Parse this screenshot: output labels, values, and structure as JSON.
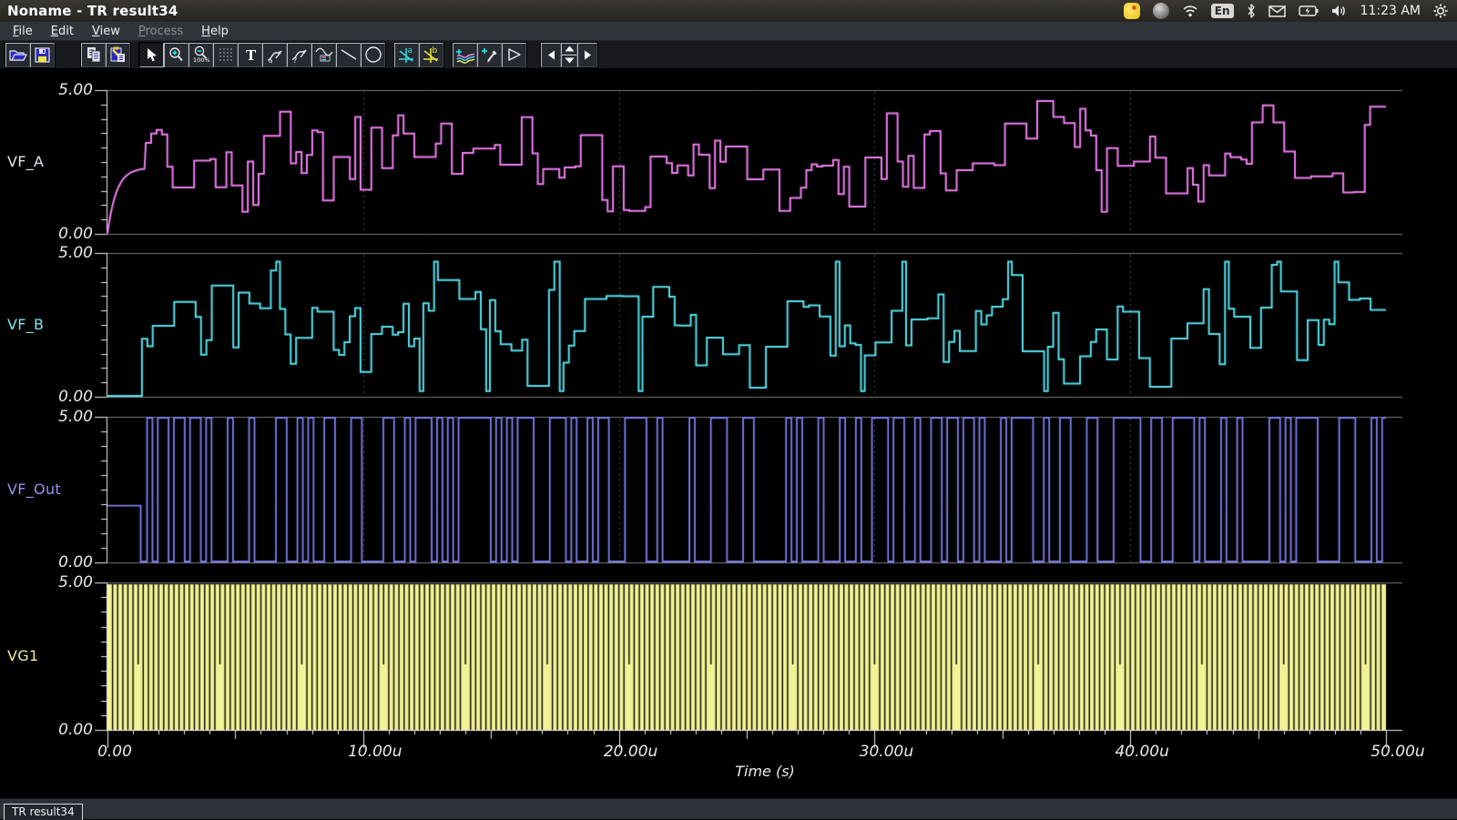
{
  "window": {
    "title": "Noname - TR result34"
  },
  "tray": {
    "icons": [
      "app-yellow-icon",
      "gray-sphere-icon",
      "wifi-icon",
      "keyboard-layout-indicator",
      "bluetooth-icon",
      "mail-icon",
      "battery-icon",
      "speaker-icon",
      "clock",
      "power-gear-icon"
    ],
    "keyboard_layout": "En",
    "clock": "11:23 AM"
  },
  "menu": {
    "items": [
      {
        "label": "File",
        "enabled": true
      },
      {
        "label": "Edit",
        "enabled": true
      },
      {
        "label": "View",
        "enabled": true
      },
      {
        "label": "Process",
        "enabled": false
      },
      {
        "label": "Help",
        "enabled": true
      }
    ]
  },
  "toolbar": {
    "buttons": [
      "open",
      "save",
      "copy",
      "paste",
      "select-cursor",
      "zoom-in",
      "zoom-out-100",
      "grid",
      "text-tool",
      "edit-curve-a",
      "edit-curve-b",
      "curve-legend",
      "line-tool",
      "ellipse-tool",
      "cursor-a",
      "cursor-b",
      "show-curves",
      "probe",
      "run",
      "scroll-left",
      "scroll-spinner",
      "scroll-right"
    ],
    "selected": "select-cursor"
  },
  "chart_data": {
    "type": "line",
    "xlabel": "Time (s)",
    "x_range_us": [
      0,
      50
    ],
    "x_ticks": [
      "0.00",
      "10.00u",
      "20.00u",
      "30.00u",
      "40.00u",
      "50.00u"
    ],
    "x_minor_tick_us": 1,
    "grid": {
      "panel_borders": "solid-gray",
      "vertical_major": "dashed-gray"
    },
    "panels": [
      {
        "name": "VF_A",
        "color": "#f07ef2",
        "label_color": "#e4e4ec",
        "ylim": [
          0,
          5
        ],
        "y_ticks": [
          "5.00",
          "0.00"
        ],
        "signal": {
          "kind": "random-steps",
          "seed": 20113,
          "initial": "exp-rise",
          "tau_us": 0.35,
          "settle_v": 2.3,
          "flat_until_us": 1.5,
          "step_us": 0.21,
          "mean_v": 2.6,
          "min_v": 0.72,
          "max_v": 4.62
        }
      },
      {
        "name": "VF_B",
        "color": "#55e2ee",
        "label_color": "#7ce7ef",
        "ylim": [
          0,
          5
        ],
        "y_ticks": [
          "5.00",
          "0.00"
        ],
        "signal": {
          "kind": "random-steps",
          "seed": 77641,
          "initial": "zero",
          "flat_until_us": 1.35,
          "step_us": 0.21,
          "mean_v": 2.55,
          "min_v": 0.2,
          "max_v": 4.7,
          "spike_prob": 0.055
        }
      },
      {
        "name": "VF_Out",
        "color": "#7f7ff0",
        "label_color": "#9595f2",
        "ylim": [
          0,
          5
        ],
        "y_ticks": [
          "5.00",
          "0.00"
        ],
        "signal": {
          "kind": "random-nrz",
          "seed": 99173,
          "initial_v": 1.95,
          "initial_until_us": 1.3,
          "bits_start_us": 1.55,
          "bit_us": 0.21,
          "high_v": 5,
          "low_v": 0
        }
      },
      {
        "name": "VG1",
        "color": "#f2f296",
        "label_color": "#eeee8e",
        "ylim": [
          0,
          5
        ],
        "y_ticks": [
          "5.00",
          "0.00"
        ],
        "signal": {
          "kind": "clock",
          "period_us": 0.2,
          "high_v": 5,
          "low_v": 0
        }
      }
    ]
  },
  "tabbar": {
    "tabs": [
      {
        "label": "TR result34",
        "active": true
      }
    ]
  }
}
